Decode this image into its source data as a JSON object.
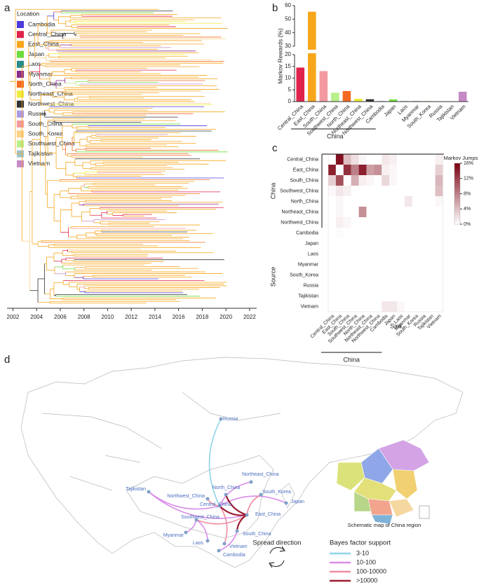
{
  "panels": [
    "a",
    "b",
    "c",
    "d"
  ],
  "chart_data": [
    {
      "type": "tree",
      "legend_title": "Location",
      "locations": [
        "Cambodia",
        "Central_China",
        "East_China",
        "Japan",
        "Laos",
        "Myanmar",
        "North_China",
        "Northeast_China",
        "Northwest_China",
        "Russia",
        "South_China",
        "South_Korea",
        "Southwest_China",
        "Tajikistan",
        "Vietnam"
      ],
      "colors": [
        "#4b3bd8",
        "#e0234a",
        "#f7a61c",
        "#6ddc3a",
        "#2a8a8a",
        "#8b2d8b",
        "#f26b21",
        "#eded3a",
        "#333333",
        "#a99ae6",
        "#f29aa0",
        "#fcd28a",
        "#b8f08a",
        "#9dc3cc",
        "#c58ac6"
      ],
      "xlim": [
        2001.5,
        2022.6
      ],
      "xticks": [
        2002,
        2004,
        2006,
        2008,
        2010,
        2012,
        2014,
        2016,
        2018,
        2020,
        2022
      ]
    },
    {
      "type": "bar",
      "y_label": "Markov Rewards (%)",
      "group_label": "China",
      "categories": [
        "Central_China",
        "East_China",
        "South_China",
        "Southwest_China",
        "North_China",
        "Northeast_China",
        "Northwest_China",
        "Cambodia",
        "Japan",
        "Laos",
        "Myanmar",
        "South_Korea",
        "Russia",
        "Tajikistan",
        "Vietnam"
      ],
      "values": [
        14.5,
        55.5,
        13,
        3.8,
        4.5,
        1.2,
        1,
        0.2,
        0.9,
        0.2,
        0.2,
        0.2,
        0.1,
        0.1,
        4.2
      ],
      "colors": [
        "#e0234a",
        "#f7a61c",
        "#f29aa0",
        "#b8f08a",
        "#f26b21",
        "#eded3a",
        "#333333",
        "#4b3bd8",
        "#6ddc3a",
        "#2a8a8a",
        "#8b2d8b",
        "#fcd28a",
        "#a99ae6",
        "#9dc3cc",
        "#c58ac6"
      ],
      "ylim": [
        0,
        60
      ],
      "axis_break": [
        20,
        30
      ],
      "yticks": [
        0,
        5,
        10,
        15,
        20,
        30,
        40,
        50,
        60
      ]
    },
    {
      "type": "heatmap",
      "y_label": "Source",
      "x_label": "Sink",
      "group_label": "China",
      "colorbar_title": "Markov Jumps",
      "rows": [
        "Central_China",
        "East_China",
        "South_China",
        "Southwest_China",
        "North_China",
        "Northeast_China",
        "Northwest_China",
        "Cambodia",
        "Japan",
        "Laos",
        "Myanmar",
        "South_Korea",
        "Russia",
        "Tajikistan",
        "Vietnam"
      ],
      "columns": [
        "Central_China",
        "East_China",
        "South_China",
        "Southwest_China",
        "North_China",
        "Northeast_China",
        "Northwest_China",
        "Cambodia",
        "Japan",
        "Laos",
        "Myanmar",
        "South_Korea",
        "Russia",
        "Tajikistan",
        "Vietnam"
      ],
      "values": [
        [
          0,
          15,
          4,
          2,
          0.5,
          0,
          0,
          1.5,
          1,
          0,
          0,
          0,
          0,
          0,
          1
        ],
        [
          14,
          0,
          13,
          8,
          14,
          6,
          7,
          1,
          0.5,
          0,
          0,
          0,
          0,
          0,
          3
        ],
        [
          3,
          11,
          0,
          5,
          1,
          0.5,
          0,
          2.5,
          0.5,
          0,
          0,
          0,
          0,
          0,
          4.5
        ],
        [
          0.5,
          1.5,
          1,
          0,
          0,
          0,
          0,
          0,
          0,
          0,
          0,
          0,
          0,
          0,
          4
        ],
        [
          0,
          0.5,
          0,
          0,
          0,
          0,
          0,
          0,
          0,
          0,
          1.5,
          0,
          0,
          0,
          0.5
        ],
        [
          0,
          0.5,
          0,
          0,
          7,
          0,
          0,
          0,
          0,
          0,
          0,
          0,
          0,
          0,
          0
        ],
        [
          0,
          1,
          0.5,
          0,
          0,
          0,
          0,
          0,
          0,
          0,
          0,
          0,
          0,
          0,
          0
        ],
        [
          0,
          0.2,
          0,
          0,
          0,
          0,
          0,
          0,
          0,
          0,
          0,
          0,
          0,
          0,
          0
        ],
        [
          0,
          0,
          0,
          0,
          0,
          0,
          0,
          0,
          0,
          0,
          0,
          0,
          0,
          0,
          0
        ],
        [
          0,
          0,
          0,
          0,
          0,
          0,
          0,
          0,
          0,
          0,
          0,
          0,
          0,
          0,
          0
        ],
        [
          0,
          0,
          0,
          0,
          0,
          0,
          0,
          0,
          0,
          0,
          0,
          0,
          0,
          0,
          0
        ],
        [
          0,
          0,
          0,
          0,
          0,
          0,
          0,
          0,
          0,
          0,
          0,
          0,
          0,
          0,
          0
        ],
        [
          0,
          0,
          0,
          0,
          0,
          0,
          0,
          0,
          0,
          0,
          0,
          0,
          0,
          0,
          0
        ],
        [
          0,
          0,
          0,
          0,
          0,
          0,
          0,
          0,
          0,
          0,
          0,
          0,
          0,
          0,
          0
        ],
        [
          0,
          0,
          0,
          0,
          0,
          0,
          0,
          1.5,
          1.5,
          0.5,
          0,
          0,
          0,
          0,
          0
        ]
      ],
      "zlim": [
        0,
        16
      ],
      "low_color": "#ffffff",
      "high_color": "#7a0010",
      "zticks": [
        {
          "value": 0,
          "label": "0%"
        },
        {
          "value": 4,
          "label": "4%"
        },
        {
          "value": 8,
          "label": "8%"
        },
        {
          "value": 12,
          "label": "12%"
        },
        {
          "value": 16,
          "label": "16%"
        }
      ]
    }
  ],
  "map": {
    "locations": [
      "Russia",
      "Northeast_China",
      "North_China",
      "Northwest_China",
      "Central_China",
      "South_Korea",
      "Japan",
      "East_China",
      "Tajikistan",
      "Southwest_China",
      "South_China",
      "Myanmar",
      "Laos",
      "Vietnam",
      "Cambodia"
    ],
    "links": [
      {
        "from": "Russia",
        "to": "Central_China",
        "support": "3-10"
      },
      {
        "from": "Tajikistan",
        "to": "Central_China",
        "support": "10-100"
      },
      {
        "from": "Tajikistan",
        "to": "East_China",
        "support": "10-100"
      },
      {
        "from": "Northeast_China",
        "to": "Central_China",
        "support": "10-100"
      },
      {
        "from": "Japan",
        "to": "Central_China",
        "support": "10-100"
      },
      {
        "from": "South_Korea",
        "to": "East_China",
        "support": "100-10000"
      },
      {
        "from": "Southwest_China",
        "to": "East_China",
        "support": "100-10000"
      },
      {
        "from": "Myanmar",
        "to": "Southwest_China",
        "support": "10-100"
      },
      {
        "from": "Vietnam",
        "to": "Central_China",
        "support": "100-10000"
      },
      {
        "from": "Cambodia",
        "to": "South_China",
        "support": "10-100"
      },
      {
        "from": "Laos",
        "to": "Southwest_China",
        "support": "10-100"
      },
      {
        "from": "Central_China",
        "to": "East_China",
        "support": ">10000"
      },
      {
        "from": "East_China",
        "to": "South_China",
        "support": ">10000"
      },
      {
        "from": "North_China",
        "to": "East_China",
        "support": ">10000"
      },
      {
        "from": "Northwest_China",
        "to": "Central_China",
        "support": "100-10000"
      }
    ],
    "direction_title": "Spread direction",
    "legend_title": "Bayes factor support",
    "levels": [
      {
        "label": "3-10",
        "color": "#8fd3e8"
      },
      {
        "label": "10-100",
        "color": "#d98be8"
      },
      {
        "label": "100-10000",
        "color": "#f08ca0"
      },
      {
        "label": ">10000",
        "color": "#9b1b30"
      }
    ],
    "inset_caption": "Schematic map of China region"
  }
}
